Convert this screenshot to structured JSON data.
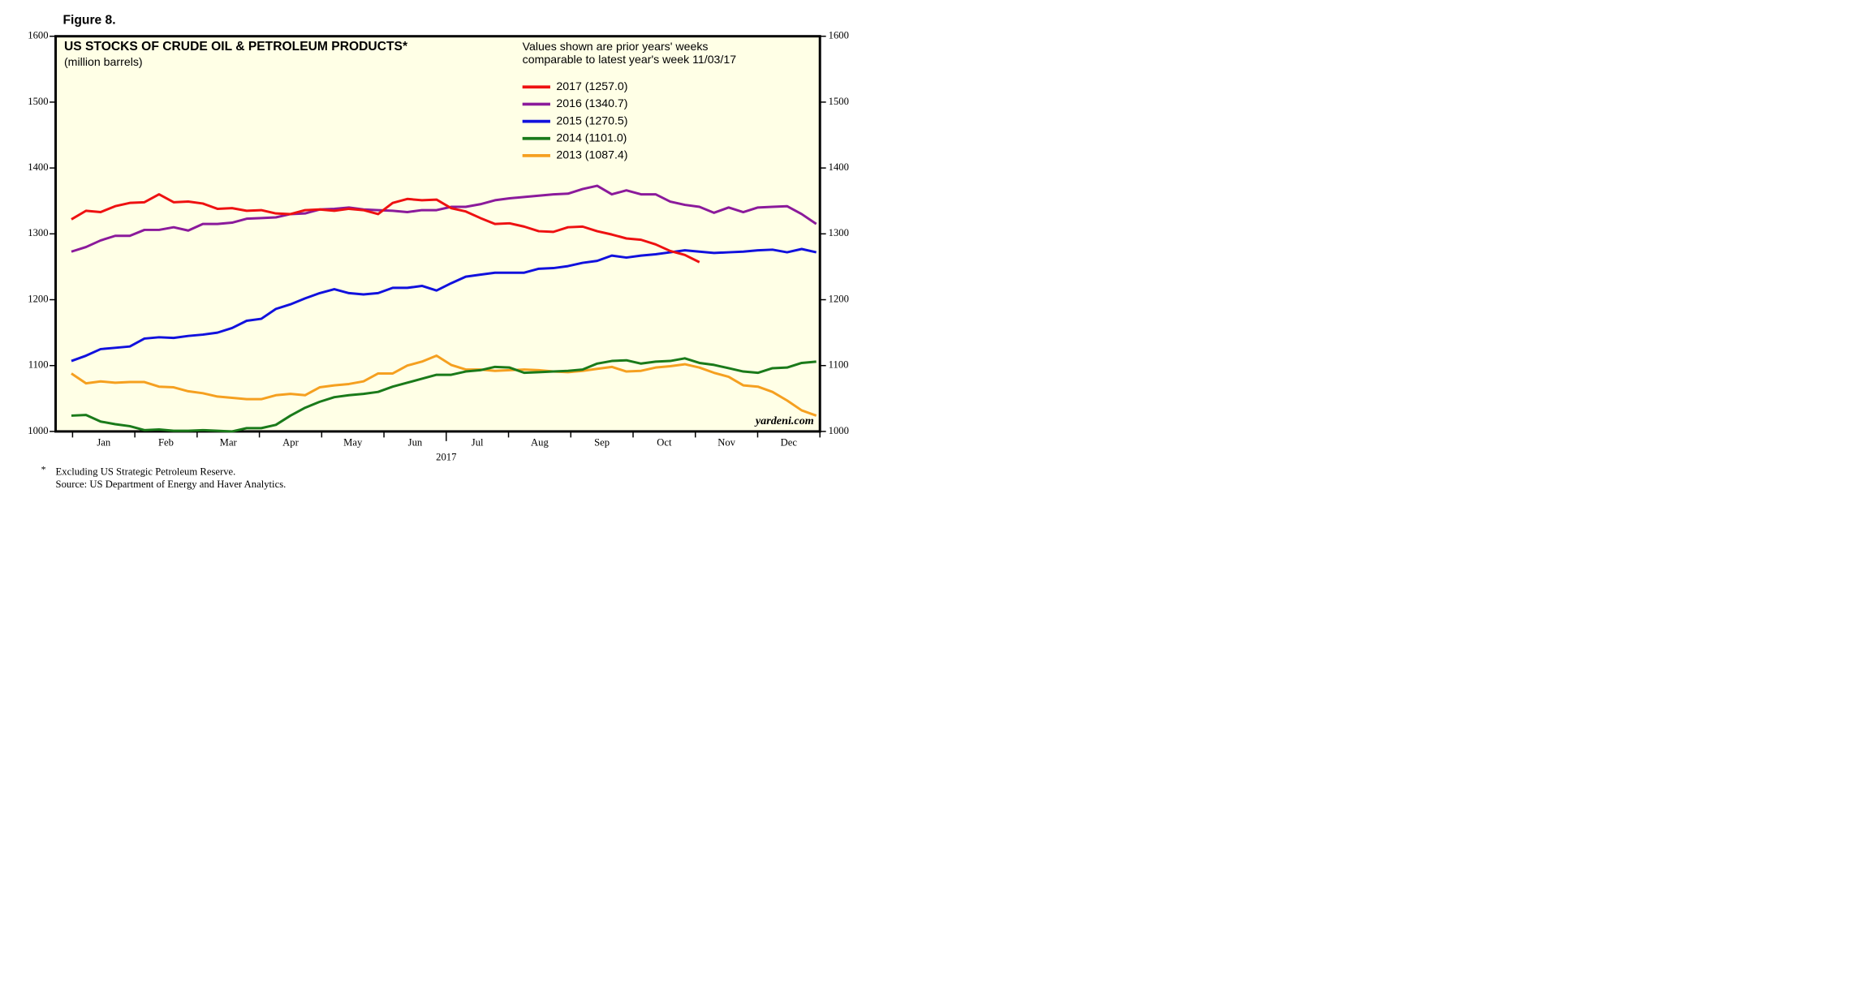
{
  "chart_data": {
    "type": "line",
    "figure_label": "Figure 8.",
    "title": "US STOCKS OF CRUDE OIL & PETROLEUM PRODUCTS*",
    "subtitle": "(million barrels)",
    "note": [
      "Values shown are prior years' weeks",
      "comparable to latest year's week 11/03/17"
    ],
    "watermark": "yardeni.com",
    "x_label": "2017",
    "month_labels": [
      "Jan",
      "Feb",
      "Mar",
      "Apr",
      "May",
      "Jun",
      "Jul",
      "Aug",
      "Sep",
      "Oct",
      "Nov",
      "Dec"
    ],
    "footnote_marker": "*",
    "footnotes": [
      "Excluding US Strategic Petroleum Reserve.",
      "Source: US Department of Energy and Haver Analytics."
    ],
    "x": [
      1,
      2,
      3,
      4,
      5,
      6,
      7,
      8,
      9,
      10,
      11,
      12,
      13,
      14,
      15,
      16,
      17,
      18,
      19,
      20,
      21,
      22,
      23,
      24,
      25,
      26,
      27,
      28,
      29,
      30,
      31,
      32,
      33,
      34,
      35,
      36,
      37,
      38,
      39,
      40,
      41,
      42,
      43,
      44,
      45,
      46,
      47,
      48,
      49,
      50,
      51,
      52
    ],
    "xlim": [
      -0.08,
      52.25
    ],
    "ylim": [
      1000,
      1600
    ],
    "yticks": [
      1000,
      1100,
      1200,
      1300,
      1400,
      1500,
      1600
    ],
    "background": "#ffffe6",
    "series": [
      {
        "name": "2017 (1257.0)",
        "color": "#ee1111",
        "values": [
          1322,
          1335,
          1333,
          1342,
          1347,
          1348,
          1360,
          1348,
          1349,
          1346,
          1338,
          1339,
          1335,
          1336,
          1331,
          1330,
          1336,
          1337,
          1335,
          1338,
          1336,
          1330,
          1347,
          1353,
          1351,
          1352,
          1339,
          1334,
          1324,
          1315,
          1316,
          1311,
          1304,
          1303,
          1310,
          1311,
          1304,
          1299,
          1293,
          1291,
          1284,
          1274,
          1268,
          1257,
          null,
          null,
          null,
          null,
          null,
          null,
          null,
          null
        ]
      },
      {
        "name": "2016 (1340.7)",
        "color": "#8b1a9b",
        "values": [
          1273,
          1280,
          1290,
          1297,
          1297,
          1306,
          1306,
          1310,
          1305,
          1315,
          1315,
          1317,
          1323,
          1324,
          1325,
          1330,
          1331,
          1337,
          1338,
          1340,
          1337,
          1336,
          1335,
          1333,
          1336,
          1336,
          1341,
          1341,
          1345,
          1351,
          1354,
          1356,
          1358,
          1360,
          1361,
          1368,
          1373,
          1360,
          1366,
          1360,
          1360,
          1349,
          1344,
          1341,
          1332,
          1340,
          1333,
          1340,
          1341,
          1342,
          1330,
          1315
        ]
      },
      {
        "name": "2015 (1270.5)",
        "color": "#1111dd",
        "values": [
          1107,
          1115,
          1125,
          1127,
          1129,
          1141,
          1143,
          1142,
          1145,
          1147,
          1150,
          1157,
          1168,
          1171,
          1186,
          1193,
          1202,
          1210,
          1216,
          1210,
          1208,
          1210,
          1218,
          1218,
          1221,
          1214,
          1225,
          1235,
          1238,
          1241,
          1241,
          1241,
          1247,
          1248,
          1251,
          1256,
          1259,
          1267,
          1264,
          1267,
          1269,
          1272,
          1275,
          1273,
          1271,
          1272,
          1273,
          1275,
          1276,
          1272,
          1277,
          1272
        ]
      },
      {
        "name": "2014 (1101.0)",
        "color": "#1a7a1a",
        "values": [
          1024,
          1025,
          1015,
          1011,
          1008,
          1002,
          1003,
          1001,
          1001,
          1002,
          1001,
          1000,
          1005,
          1005,
          1010,
          1024,
          1036,
          1045,
          1052,
          1055,
          1057,
          1060,
          1068,
          1074,
          1080,
          1086,
          1086,
          1091,
          1093,
          1098,
          1097,
          1089,
          1090,
          1091,
          1092,
          1094,
          1103,
          1107,
          1108,
          1103,
          1106,
          1107,
          1111,
          1104,
          1101,
          1096,
          1091,
          1089,
          1096,
          1097,
          1104,
          1106
        ]
      },
      {
        "name": "2013 (1087.4)",
        "color": "#f5a020",
        "values": [
          1088,
          1073,
          1076,
          1074,
          1075,
          1075,
          1068,
          1067,
          1061,
          1058,
          1053,
          1051,
          1049,
          1049,
          1055,
          1057,
          1055,
          1067,
          1070,
          1072,
          1076,
          1088,
          1088,
          1100,
          1106,
          1115,
          1101,
          1094,
          1094,
          1092,
          1093,
          1094,
          1093,
          1091,
          1090,
          1092,
          1095,
          1098,
          1091,
          1092,
          1097,
          1099,
          1102,
          1097,
          1089,
          1083,
          1070,
          1068,
          1060,
          1047,
          1032,
          1024
        ]
      }
    ]
  }
}
